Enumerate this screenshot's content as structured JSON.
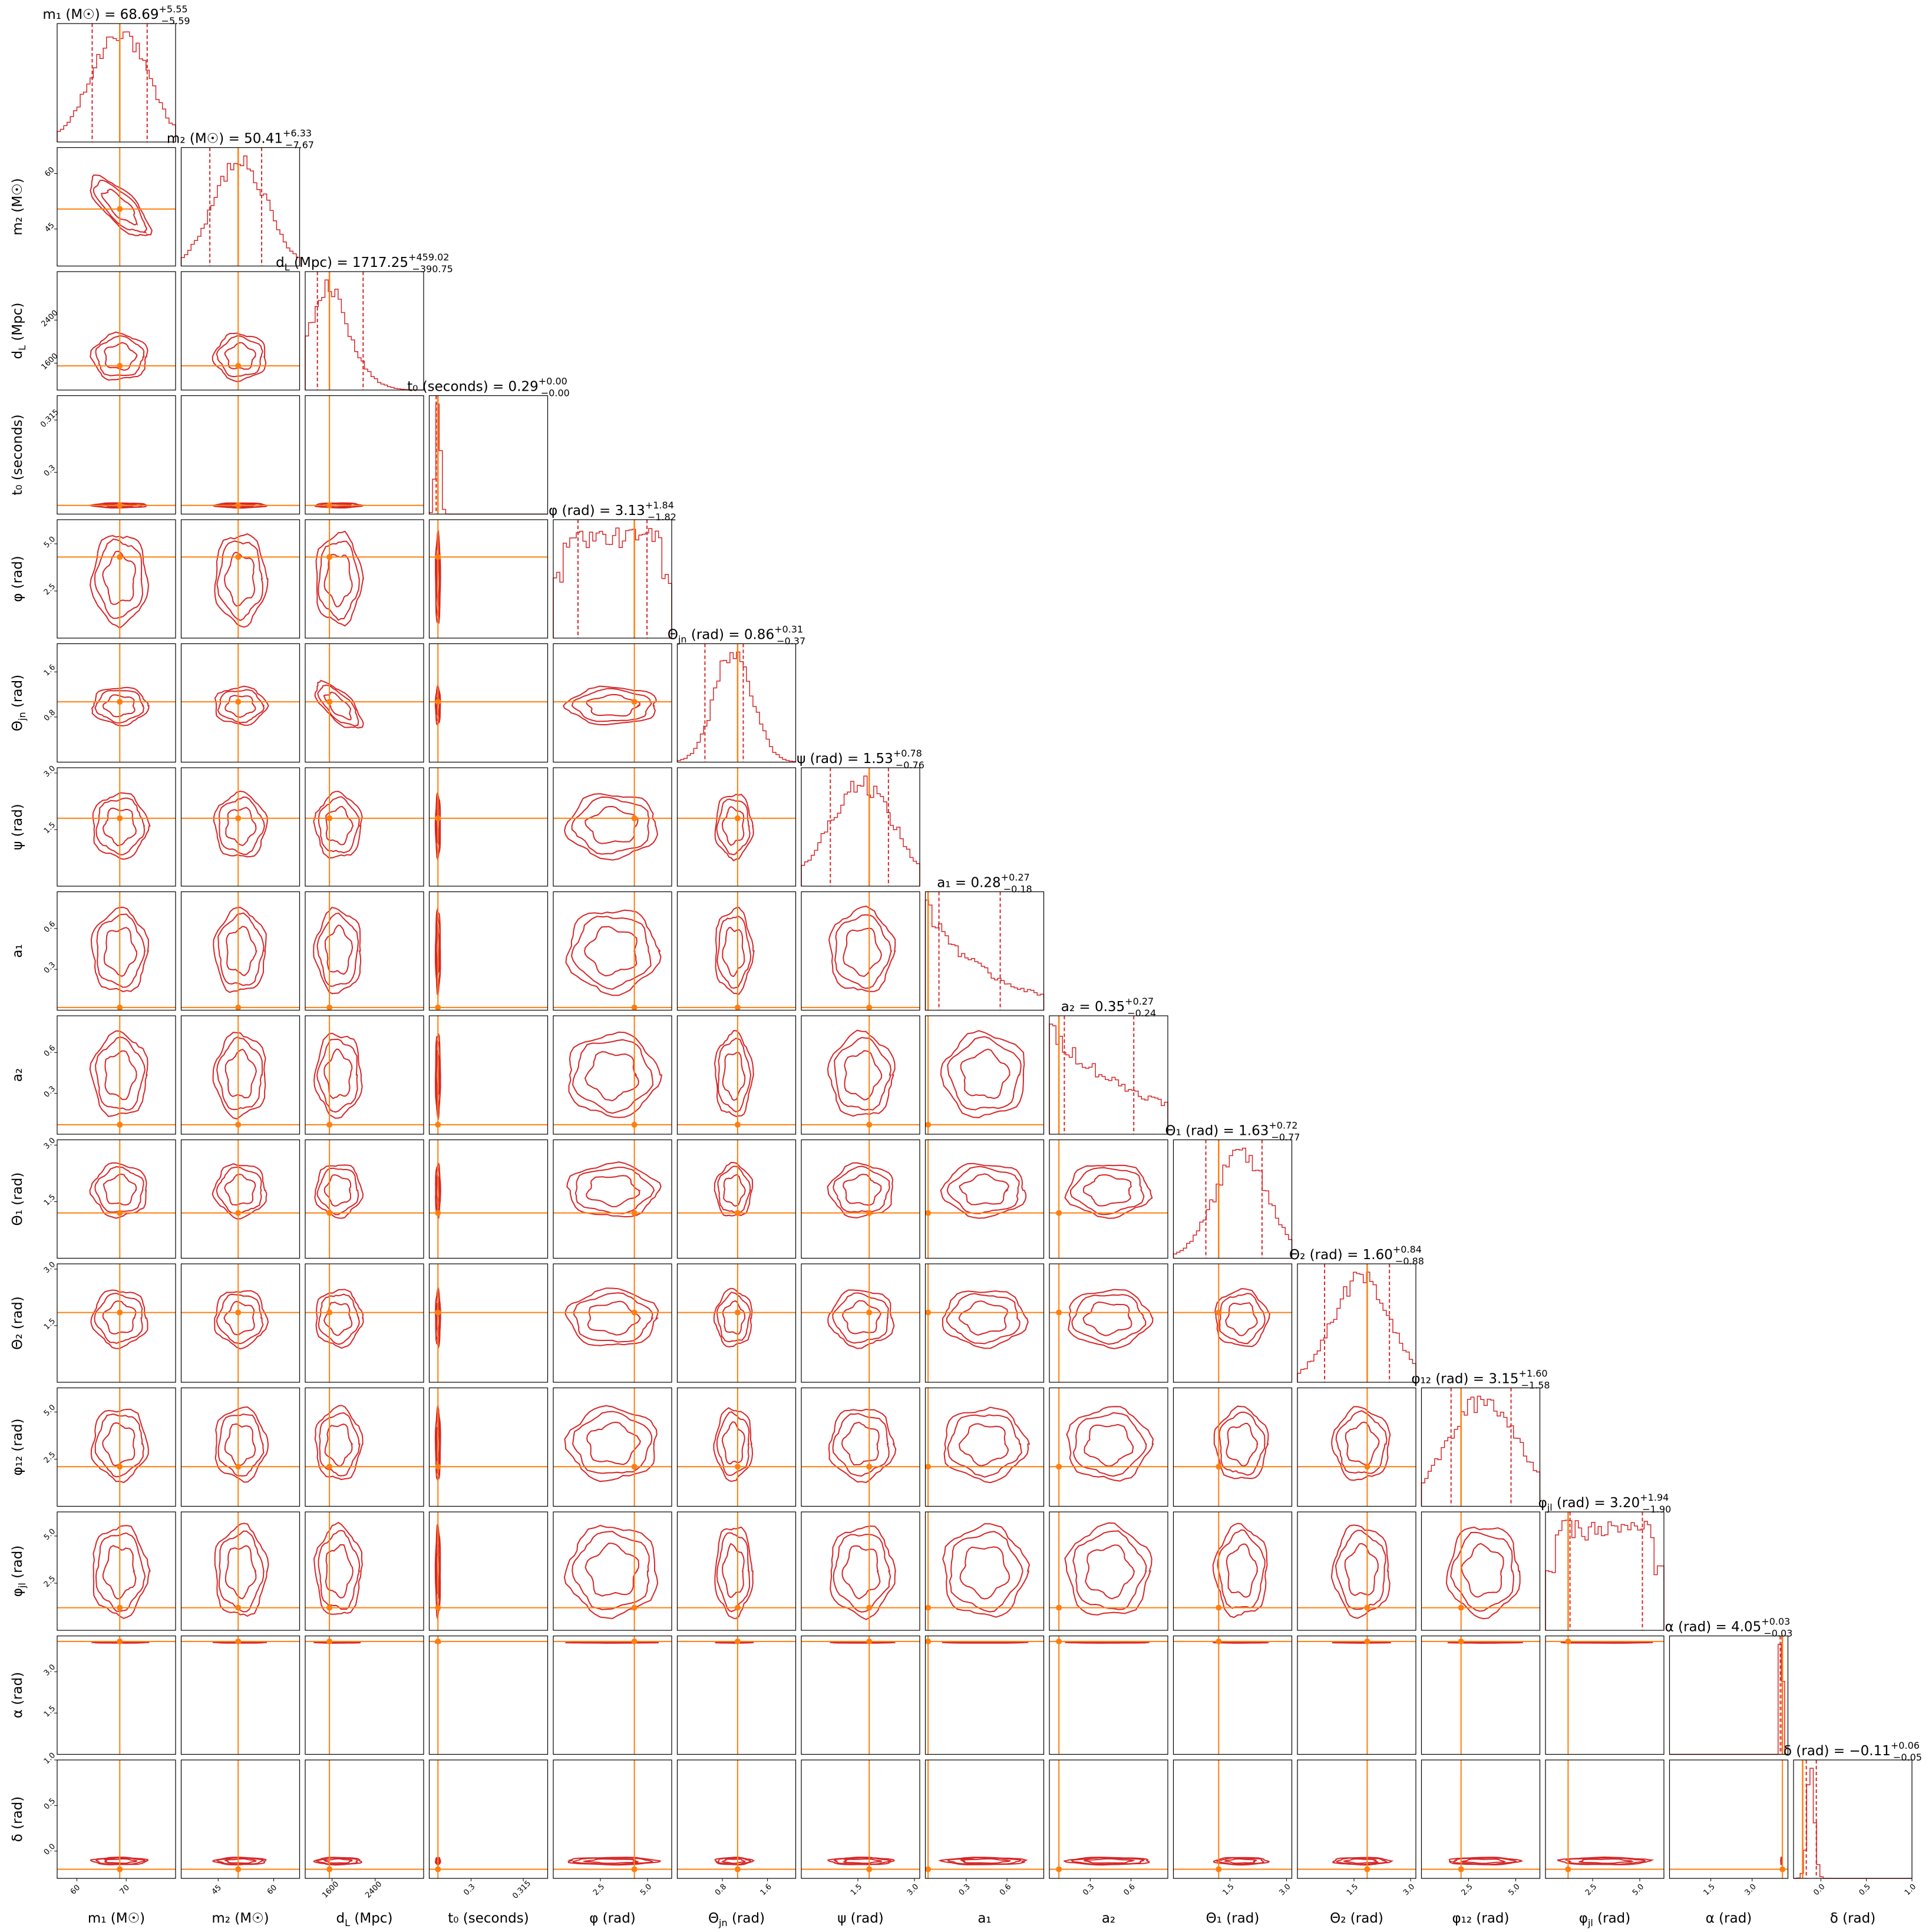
{
  "chart_data": {
    "type": "corner",
    "colors": {
      "posterior": "#d62728",
      "truth": "#ff7f0e",
      "frame": "#000000"
    },
    "params": [
      {
        "label": "m₁ (M☉)",
        "median": "68.69",
        "plus": "+5.55",
        "minus": "−5.59",
        "range": [
          56,
          80
        ],
        "truth": 68.69,
        "ticks": [
          60,
          70
        ],
        "shape": "gauss",
        "mu": 68.69,
        "sd": 5.6
      },
      {
        "label": "m₂ (M☉)",
        "median": "50.41",
        "plus": "+6.33",
        "minus": "−7.67",
        "range": [
          35,
          67
        ],
        "truth": 50.4,
        "ticks": [
          45,
          60
        ],
        "shape": "gauss",
        "mu": 51,
        "sd": 7
      },
      {
        "label": "d_L (Mpc)",
        "median": "1717.25",
        "plus": "+459.02",
        "minus": "−390.75",
        "range": [
          1100,
          3300
        ],
        "truth": 1550,
        "ticks": [
          1600,
          2400
        ],
        "shape": "skew",
        "mu": 1717,
        "sd": 430
      },
      {
        "label": "t₀ (seconds)",
        "median": "0.29",
        "plus": "+0.00",
        "minus": "−0.00",
        "range": [
          0.288,
          0.322
        ],
        "truth": 0.2905,
        "ticks": [
          0.3,
          0.315
        ],
        "shape": "gauss",
        "mu": 0.2905,
        "sd": 0.0007
      },
      {
        "label": "φ (rad)",
        "median": "3.13",
        "plus": "+1.84",
        "minus": "−1.82",
        "range": [
          0,
          6.28
        ],
        "truth": 4.3,
        "ticks": [
          2.5,
          5.0
        ],
        "shape": "flat"
      },
      {
        "label": "Θ_jn (rad)",
        "median": "0.86",
        "plus": "+0.31",
        "minus": "−0.37",
        "range": [
          0,
          2.1
        ],
        "truth": 1.07,
        "ticks": [
          0.8,
          1.6
        ],
        "shape": "gauss",
        "mu": 1.0,
        "sd": 0.33
      },
      {
        "label": "ψ (rad)",
        "median": "1.53",
        "plus": "+0.78",
        "minus": "−0.76",
        "range": [
          0,
          3.14
        ],
        "truth": 1.8,
        "ticks": [
          1.5,
          3.0
        ],
        "shape": "broad",
        "mu": 1.6,
        "sd": 0.85
      },
      {
        "label": "a₁",
        "median": "0.28",
        "plus": "+0.27",
        "minus": "−0.18",
        "range": [
          0,
          0.87
        ],
        "truth": 0.02,
        "ticks": [
          0.3,
          0.6
        ],
        "shape": "decay",
        "mu": 0,
        "sd": 0.45
      },
      {
        "label": "a₂",
        "median": "0.35",
        "plus": "+0.27",
        "minus": "−0.24",
        "range": [
          0,
          0.87
        ],
        "truth": 0.07,
        "ticks": [
          0.3,
          0.6
        ],
        "shape": "decay",
        "mu": 0,
        "sd": 0.7
      },
      {
        "label": "Θ₁ (rad)",
        "median": "1.63",
        "plus": "+0.72",
        "minus": "−0.77",
        "range": [
          0,
          3.14
        ],
        "truth": 1.2,
        "ticks": [
          1.5,
          3.0
        ],
        "shape": "gauss",
        "mu": 1.8,
        "sd": 0.7
      },
      {
        "label": "Θ₂ (rad)",
        "median": "1.60",
        "plus": "+0.84",
        "minus": "−0.88",
        "range": [
          0,
          3.14
        ],
        "truth": 1.85,
        "ticks": [
          1.5,
          3.0
        ],
        "shape": "gauss",
        "mu": 1.7,
        "sd": 0.75
      },
      {
        "label": "φ₁₂ (rad)",
        "median": "3.15",
        "plus": "+1.60",
        "minus": "−1.58",
        "range": [
          0,
          6.28
        ],
        "truth": 2.1,
        "ticks": [
          2.5,
          5.0
        ],
        "shape": "broad",
        "mu": 3.3,
        "sd": 1.9
      },
      {
        "label": "φ_jl (rad)",
        "median": "3.20",
        "plus": "+1.94",
        "minus": "−1.90",
        "range": [
          0,
          6.28
        ],
        "truth": 1.2,
        "ticks": [
          2.5,
          5.0
        ],
        "shape": "flat"
      },
      {
        "label": "α (rad)",
        "median": "4.05",
        "plus": "+0.03",
        "minus": "−0.03",
        "range": [
          0,
          4.3
        ],
        "truth": 4.1,
        "ticks": [
          1.5,
          3.0
        ],
        "shape": "gauss",
        "mu": 4.06,
        "sd": 0.02
      },
      {
        "label": "δ (rad)",
        "median": "−0.11",
        "plus": "+0.06",
        "minus": "−0.05",
        "range": [
          -0.3,
          1.0
        ],
        "truth": -0.2,
        "ticks": [
          0.0,
          0.5,
          1.0
        ],
        "shape": "gauss",
        "mu": -0.11,
        "sd": 0.04
      }
    ],
    "yticks_override": {
      "1": [
        45,
        60
      ],
      "2": [
        1600,
        2400
      ],
      "3": [
        0.3,
        0.315
      ],
      "4": [
        2.5,
        5.0
      ],
      "5": [
        0.8,
        1.6
      ],
      "6": [
        1.5,
        3.0
      ],
      "7": [
        0.3,
        0.6
      ],
      "8": [
        0.3,
        0.6
      ],
      "9": [
        1.5,
        3.0
      ],
      "10": [
        1.5,
        3.0
      ],
      "11": [
        2.5,
        5.0
      ],
      "12": [
        2.5,
        5.0
      ],
      "13": [
        1.5,
        3.0
      ],
      "14": [
        0.0,
        0.5,
        1.0
      ]
    }
  }
}
